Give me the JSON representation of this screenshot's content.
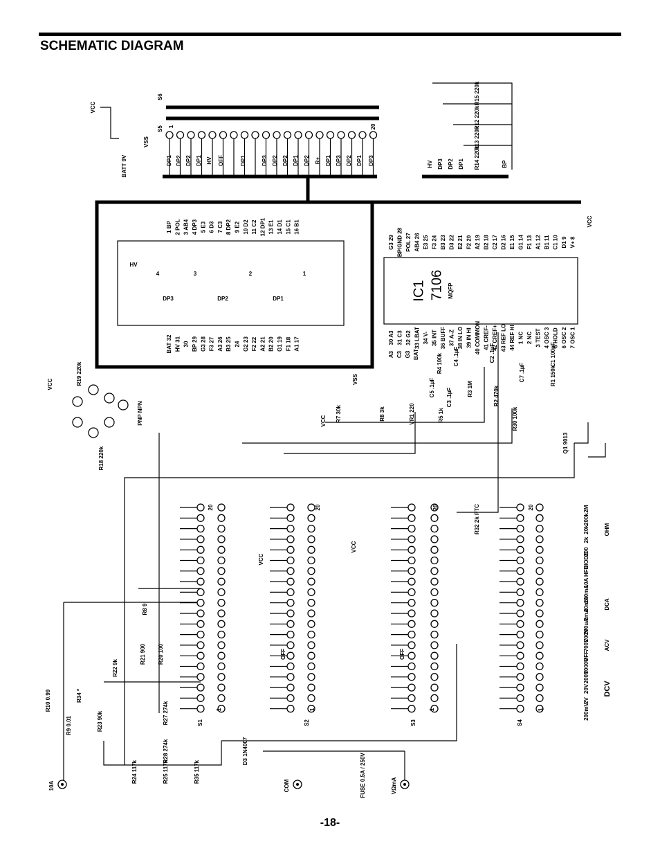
{
  "header": {
    "title": "SCHEMATIC DIAGRAM"
  },
  "page_number": "-18-",
  "labels": [
    "VCC",
    "S6",
    "S5",
    "1",
    "20",
    "BATT 9V",
    "VSS",
    "DP1",
    "DP2",
    "DP2",
    "DP1",
    "HV",
    "OFF",
    "DP1",
    "DP3",
    "DP2",
    "DP2",
    "DP1",
    "DP2",
    "R+",
    "DP1",
    "DP3",
    "DP2",
    "DP1",
    "DP3",
    "HV",
    "DP3",
    "DP2",
    "DP1",
    "BP",
    "R15 220k",
    "R12 220k",
    "R13 220k",
    "R14 220k",
    "HV",
    "4",
    "3",
    "2",
    "1",
    "DP3",
    "DP2",
    "DP1",
    "1 BP",
    "2 POL",
    "3 AB4",
    "4 DP3",
    "5 E3",
    "6 D3",
    "7 C3",
    "8 DP2",
    "9 E2",
    "10 D2",
    "11 C2",
    "12 DP1",
    "13 E1",
    "14 D1",
    "15 C1",
    "16 B1",
    "BAT 32",
    "HV 31",
    "30",
    "BP 29",
    "G3 28",
    "F3 27",
    "A3 26",
    "B3 25",
    "24",
    "G2 23",
    "F2 22",
    "A2 21",
    "B2 20",
    "G1 19",
    "F1 18",
    "A1 17",
    "G3 29",
    "BP/GND 28",
    "POL 27",
    "AB4 26",
    "E3 25",
    "F3 24",
    "B3 23",
    "D3 22",
    "E2 21",
    "F2 20",
    "A2 19",
    "B2 18",
    "C2 17",
    "D2 16",
    "E1 15",
    "G1 14",
    "F1 13",
    "A1 12",
    "B1 11",
    "C1 10",
    "D1 9",
    "V+ 8",
    "30 A3",
    "31 C3",
    "32 G2",
    "33 LBAT",
    "34 V-",
    "35 INT",
    "36 BUFF",
    "37 A-Z",
    "38 IN LO",
    "39 IN HI",
    "40 COMMON",
    "41 CREF-",
    "42 CREF+",
    "43 REF LO",
    "44 REF HI",
    "1 NC",
    "2 NC",
    "3 TEST",
    "4 OSC 3",
    "5 HOLD",
    "6 OSC 2",
    "7 OSC 1",
    "A3",
    "C3",
    "G3",
    "BAT",
    "IC1",
    "7106",
    "MQFP",
    "VCC",
    "R19 220k",
    "PNP NPN",
    "R18 220k",
    "VSS",
    "VCC",
    "R7 30k",
    "R8 3k",
    "VR1 220",
    "R5 1k",
    "R30 100k",
    "R3 1M",
    "R2 470k",
    "R1 150k",
    "C1 100pF",
    "C5 .1µF",
    "C3 .1µF",
    "R4 100k",
    "C4 .1µF",
    "C2 .1µF",
    "C7 .1µF",
    "Q1 9013",
    "VCC",
    "R32 2k PTC",
    "VCC",
    "VCC",
    "OFF",
    "OFF",
    "R8 9",
    "R21 900",
    "R20 100",
    "R22 9k",
    "R10 0.99",
    "R34 *",
    "R9 0.01",
    "R23 90k",
    "R27 274k",
    "R28 274k",
    "R24 117k",
    "R25 117k",
    "R35 117k",
    "D3 1N4007",
    "FUSE 0.5A / 250V",
    "S1",
    "S2",
    "S3",
    "S4",
    "20",
    "20",
    "20",
    "20",
    "1",
    "1",
    "1",
    "1",
    "10A",
    "COM",
    "VΩmA",
    "2M",
    "200k",
    "20k",
    "2k",
    "200",
    "DIODE",
    "HFE",
    "10A",
    "200mA",
    "20mA",
    "2mA",
    "200uA",
    "200V",
    "700V",
    "OFF",
    "1000V",
    "200V",
    "20V",
    "2V",
    "200mV",
    "OHM",
    "DCA",
    "ACV",
    "DCV"
  ]
}
